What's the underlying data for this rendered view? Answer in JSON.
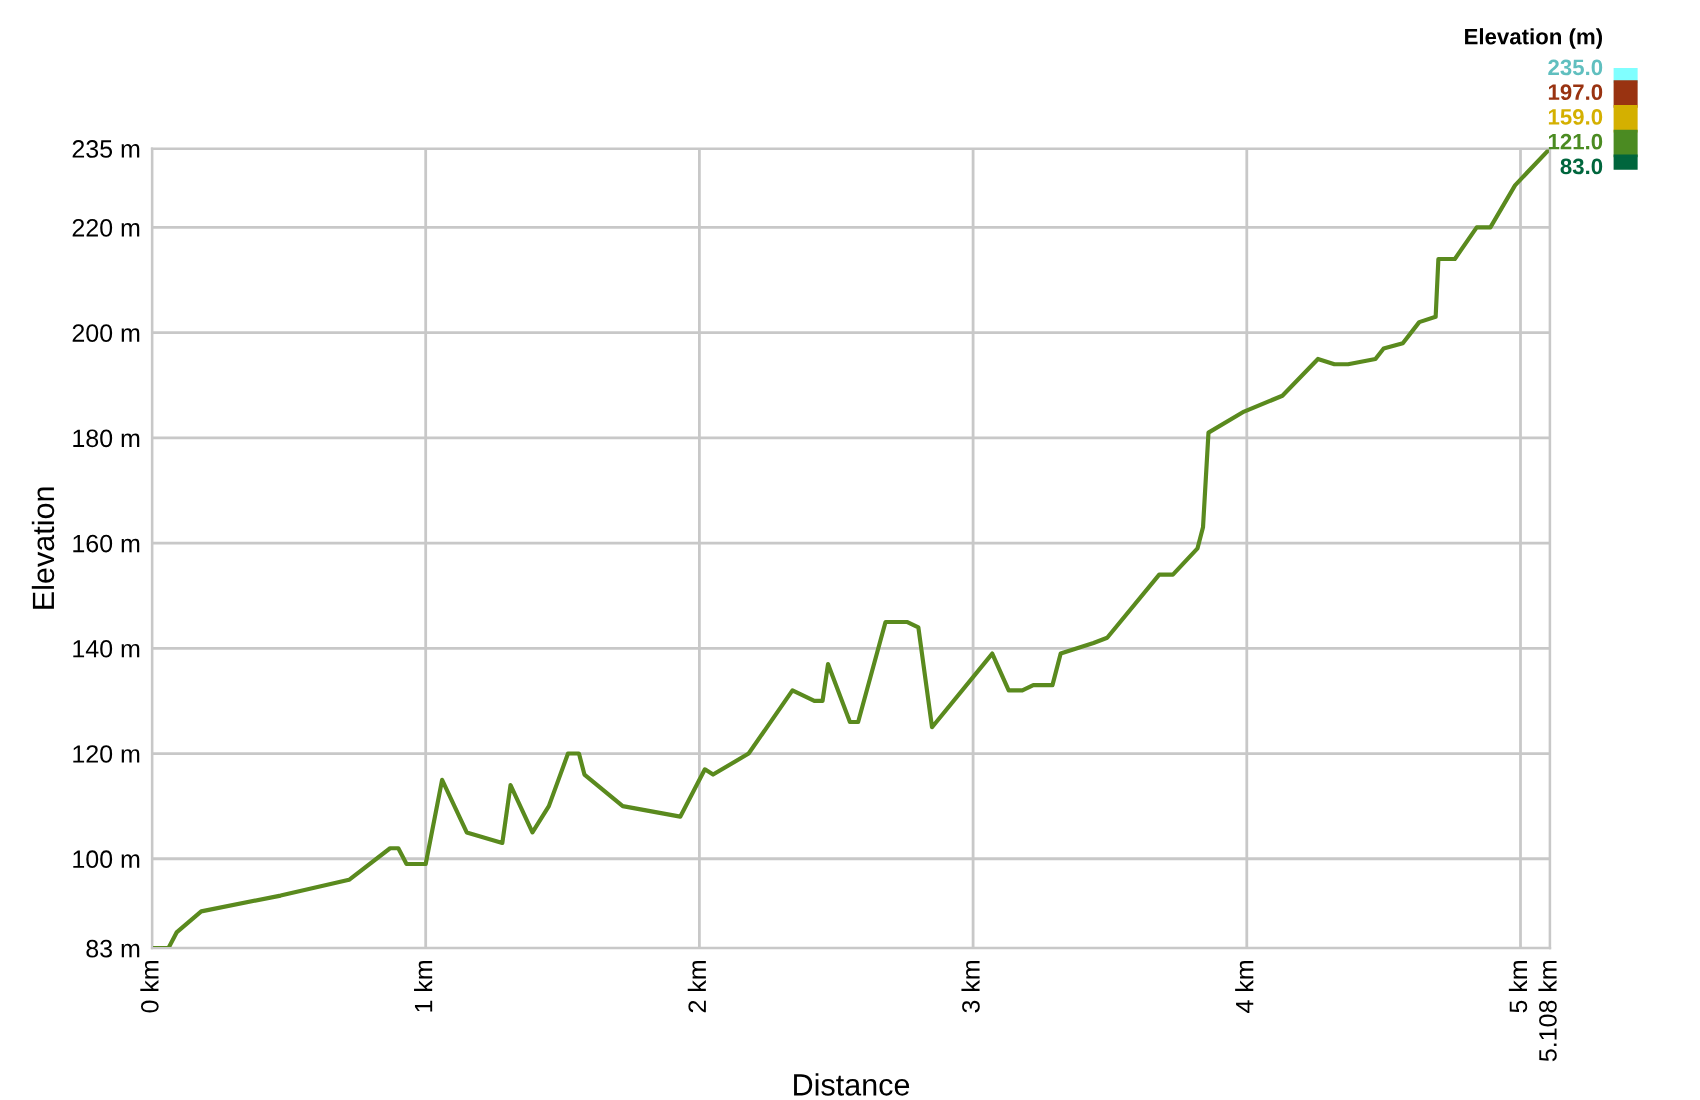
{
  "chart_data": {
    "type": "line",
    "xlabel": "Distance",
    "ylabel": "Elevation",
    "clabel": "Elevation (m)",
    "x": [
      0,
      0.06,
      0.09,
      0.18,
      0.47,
      0.72,
      0.87,
      0.9,
      0.93,
      1.0,
      1.06,
      1.15,
      1.28,
      1.31,
      1.39,
      1.45,
      1.52,
      1.56,
      1.58,
      1.72,
      1.93,
      2.02,
      2.05,
      2.18,
      2.34,
      2.42,
      2.45,
      2.47,
      2.55,
      2.58,
      2.68,
      2.76,
      2.8,
      2.85,
      3.07,
      3.13,
      3.18,
      3.22,
      3.29,
      3.32,
      3.38,
      3.44,
      3.49,
      3.68,
      3.73,
      3.82,
      3.84,
      3.86,
      3.99,
      4.13,
      4.26,
      4.32,
      4.37,
      4.47,
      4.5,
      4.57,
      4.63,
      4.69,
      4.7,
      4.76,
      4.84,
      4.89,
      4.98,
      5.108
    ],
    "series": [
      {
        "color": "#5a8a1e",
        "values": [
          83,
          83,
          86,
          90,
          93,
          96,
          102,
          102,
          99,
          99,
          115,
          105,
          103,
          114,
          105,
          110,
          120,
          120,
          116,
          110,
          108,
          117,
          116,
          120,
          132,
          130,
          130,
          137,
          126,
          126,
          145,
          145,
          144,
          125,
          139,
          132,
          132,
          133,
          133,
          139,
          140,
          141,
          142,
          154,
          154,
          159,
          163,
          181,
          185,
          188,
          195,
          194,
          194,
          195,
          197,
          198,
          202,
          203,
          214,
          214,
          220,
          220,
          228,
          235
        ]
      }
    ],
    "clim": [
      83,
      235
    ],
    "cticks": [
      {
        "value": 235,
        "label": "235.0"
      },
      {
        "value": 197,
        "label": "197.0"
      },
      {
        "value": 159,
        "label": "159.0"
      },
      {
        "value": 121,
        "label": "121.0"
      },
      {
        "value": 83,
        "label": "83.0"
      }
    ],
    "colors": [
      "#80ffff",
      "#993311",
      "#d4b000",
      "#4b8b22",
      "#00663d"
    ],
    "xlim": [
      0,
      5.108
    ],
    "xticks": [
      {
        "value": 0,
        "label": "0 km"
      },
      {
        "value": 1,
        "label": "1 km"
      },
      {
        "value": 2,
        "label": "2 km"
      },
      {
        "value": 3,
        "label": "3 km"
      },
      {
        "value": 4,
        "label": "4 km"
      },
      {
        "value": 5,
        "label": "5 km"
      },
      {
        "value": 5.108,
        "label": "5.108 km"
      }
    ],
    "ylim": [
      83,
      235
    ],
    "yticks": [
      {
        "value": 83,
        "label": "83 m"
      },
      {
        "value": 100,
        "label": "100 m"
      },
      {
        "value": 120,
        "label": "120 m"
      },
      {
        "value": 140,
        "label": "140 m"
      },
      {
        "value": 160,
        "label": "160 m"
      },
      {
        "value": 180,
        "label": "180 m"
      },
      {
        "value": 200,
        "label": "200 m"
      },
      {
        "value": 220,
        "label": "220 m"
      },
      {
        "value": 235,
        "label": "235 m"
      }
    ],
    "grid": true
  }
}
